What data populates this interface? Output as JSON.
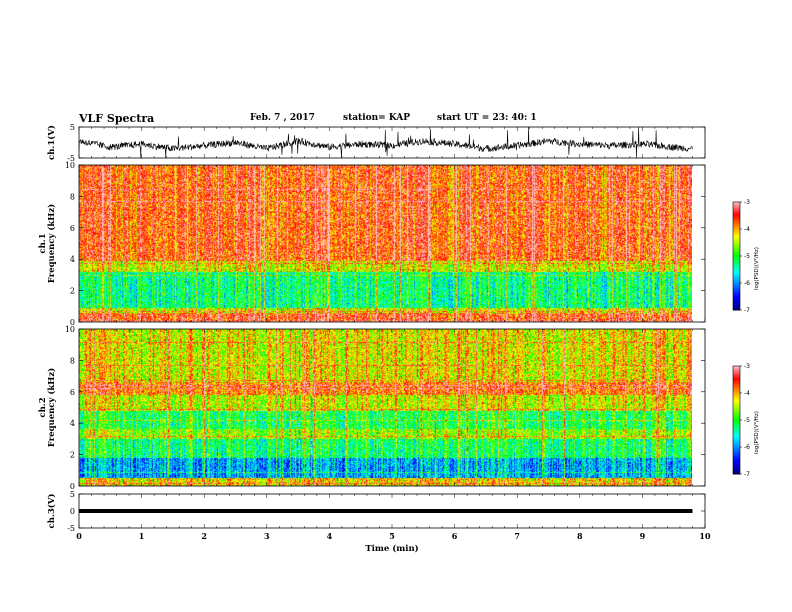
{
  "header": {
    "title": "VLF Spectra",
    "date": "Feb. 7 , 2017",
    "station": "station= KAP",
    "start": "start  UT =   23: 40: 1"
  },
  "chart_data": [
    {
      "type": "line",
      "panel": "ch1-waveform",
      "ylabel": "ch.1(V)",
      "ylim": [
        -5,
        5
      ],
      "xlim": [
        0,
        10
      ],
      "yticks": [
        "5",
        "-5"
      ],
      "description_values": "noisy waveform, amplitude ~ -5 to 5 V, baseline near -1 V, mostly between -3 and 2 V",
      "x": [
        0,
        0.5,
        1,
        1.5,
        2,
        2.5,
        3,
        3.5,
        4,
        4.5,
        5,
        5.5,
        6,
        6.5,
        7,
        7.5,
        8,
        8.5,
        9,
        9.5,
        9.8
      ],
      "y": [
        0.5,
        -1.5,
        -0.5,
        -2,
        -1,
        0,
        -2,
        0.5,
        -1.5,
        -0.5,
        -1,
        0.5,
        -0.5,
        -2,
        -1,
        0.5,
        -0.5,
        -1,
        -0.5,
        -1.5,
        -2
      ]
    },
    {
      "type": "heatmap",
      "panel": "ch1-spectrogram",
      "ylabel": "ch.1\nFrequency (kHz)",
      "xlim": [
        0,
        10
      ],
      "ylim": [
        0,
        10
      ],
      "yticks": [
        "0",
        "2",
        "4",
        "6",
        "8",
        "10"
      ],
      "data_end_min": 9.8,
      "colorbar": {
        "label": "log(PSD)(V²/Hz)",
        "range": [
          -7,
          -3
        ],
        "ticks": [
          "-3",
          "-4",
          "-5",
          "-6",
          "-7"
        ]
      },
      "bands_khz_log_psd": [
        {
          "f": [
            0,
            0.6
          ],
          "v": -3.6
        },
        {
          "f": [
            0.6,
            0.9
          ],
          "v": -4.4
        },
        {
          "f": [
            0.9,
            3.2
          ],
          "v": -5.3
        },
        {
          "f": [
            3.2,
            3.9
          ],
          "v": -4.4
        },
        {
          "f": [
            3.9,
            10
          ],
          "v": -3.7
        }
      ]
    },
    {
      "type": "heatmap",
      "panel": "ch2-spectrogram",
      "ylabel": "ch.2\nFrequency (kHz)",
      "xlim": [
        0,
        10
      ],
      "ylim": [
        0,
        10
      ],
      "yticks": [
        "0",
        "2",
        "4",
        "6",
        "8",
        "10"
      ],
      "data_end_min": 9.8,
      "colorbar": {
        "label": "log(PSD)(V²/Hz)",
        "range": [
          -7,
          -3
        ],
        "ticks": [
          "-3",
          "-4",
          "-5",
          "-6",
          "-7"
        ]
      },
      "bands_khz_log_psd": [
        {
          "f": [
            0,
            0.5
          ],
          "v": -4.2
        },
        {
          "f": [
            0.5,
            1.8
          ],
          "v": -5.9
        },
        {
          "f": [
            1.8,
            3.0
          ],
          "v": -5.2
        },
        {
          "f": [
            3.0,
            3.6
          ],
          "v": -4.6
        },
        {
          "f": [
            3.6,
            4.8
          ],
          "v": -5.1
        },
        {
          "f": [
            4.8,
            5.8
          ],
          "v": -4.4
        },
        {
          "f": [
            5.8,
            6.6
          ],
          "v": -3.8
        },
        {
          "f": [
            6.6,
            10
          ],
          "v": -4.3
        }
      ]
    },
    {
      "type": "line",
      "panel": "ch3-waveform",
      "ylabel": "ch.3(V)",
      "ylim": [
        -5,
        5
      ],
      "xlim": [
        0,
        10
      ],
      "yticks": [
        "5",
        "0",
        "-5"
      ],
      "x": [
        0,
        9.8
      ],
      "y": [
        0,
        0
      ]
    }
  ],
  "xaxis": {
    "label": "Time (min)",
    "ticks": [
      "0",
      "1",
      "2",
      "3",
      "4",
      "5",
      "6",
      "7",
      "8",
      "9",
      "10"
    ]
  },
  "colors": {
    "line": "#000000",
    "colormap": [
      "#00007f",
      "#0000ff",
      "#00ffff",
      "#00ff00",
      "#ffff00",
      "#ff0000",
      "#ffc0cb"
    ]
  }
}
